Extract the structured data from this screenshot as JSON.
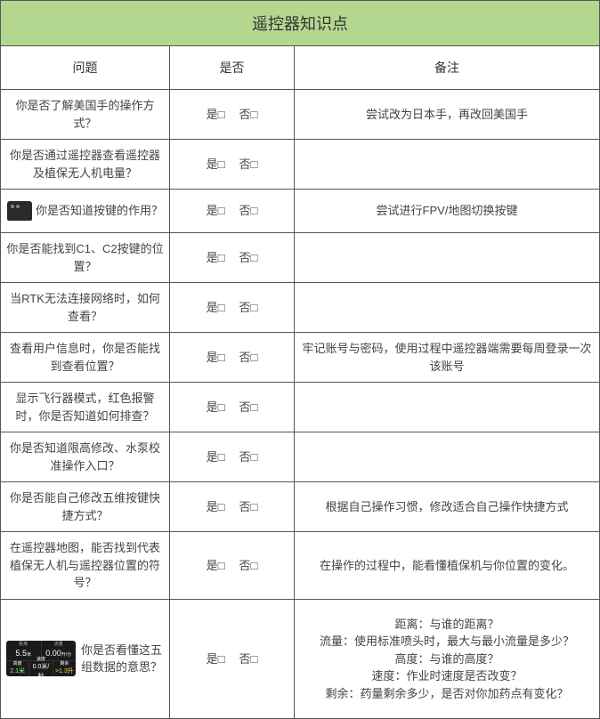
{
  "title": "遥控器知识点",
  "headers": {
    "question": "问题",
    "yesno": "是否",
    "note": "备注"
  },
  "yn": {
    "yes": "是□",
    "no": "否□"
  },
  "rows": [
    {
      "question": "你是否了解美国手的操作方式？",
      "note": "尝试改为日本手，再改回美国手",
      "icon": null
    },
    {
      "question": "你是否通过遥控器查看遥控器及植保无人机电量？",
      "note": "",
      "icon": null
    },
    {
      "question": "你是否知道按键的作用？",
      "note": "尝试进行FPV/地图切换按键",
      "icon": "controller"
    },
    {
      "question": "你是否能找到C1、C2按键的位置？",
      "note": "",
      "icon": null
    },
    {
      "question": "当RTK无法连接网络时，如何查看？",
      "note": "",
      "icon": null
    },
    {
      "question": "查看用户信息时，你是否能找到查看位置？",
      "note": "牢记账号与密码，使用过程中遥控器端需要每周登录一次该账号",
      "icon": null
    },
    {
      "question": "显示飞行器模式，红色报警时，你是否知道如何排查？",
      "note": "",
      "icon": null
    },
    {
      "question": "你是否知道限高修改、水泵校准操作入口？",
      "note": "",
      "icon": null
    },
    {
      "question": "你是否能自己修改五维按键快捷方式？",
      "note": "根据自己操作习惯，修改适合自己操作快捷方式",
      "icon": null
    },
    {
      "question": "在遥控器地图，能否找到代表植保无人机与遥控器位置的符号？",
      "note": "在操作的过程中，能看懂植保机与你位置的变化。",
      "icon": null
    },
    {
      "question": "你是否看懂这五组数据的意思？",
      "note_lines": [
        "距离：与谁的距离？",
        "流量：使用标准喷头时，最大与最小流量是多少？",
        "高度：与谁的高度？",
        "速度：作业时速度是否改变？",
        "剩余：药量剩余多少，是否对你加药点有变化？"
      ],
      "icon": "dashboard",
      "tall": true
    }
  ],
  "dashboard": {
    "d_label": "距离",
    "d_val": "5.5",
    "d_unit": "米",
    "f_label": "流量",
    "f_val": "0.00",
    "f_unit": "升/分",
    "h_label": "高度",
    "h_val": "2.1米",
    "s_label": "速度",
    "s_val": "0.0米/秒",
    "r_label": "剩余",
    "r_val": ">1.3升"
  },
  "colors": {
    "title_bg": "#b4d78f",
    "border": "#555555",
    "text": "#444444"
  }
}
